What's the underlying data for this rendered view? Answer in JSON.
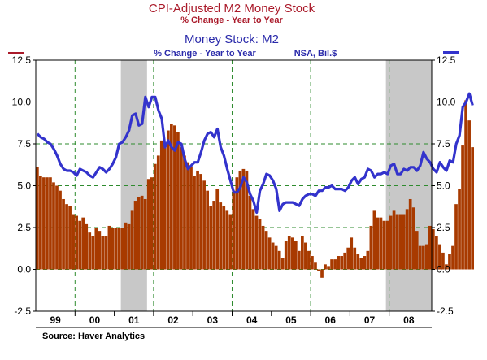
{
  "chart_data": {
    "type": "bar+line",
    "title": "CPI-Adjusted M2 Money Stock",
    "subtitle": "% Change - Year to Year",
    "title2": "Money Stock: M2",
    "subtitle2": "% Change - Year to Year",
    "note2": "NSA, Bil.$",
    "source": "Source: Haver Analytics",
    "ylim": [
      -2.5,
      12.5
    ],
    "yticks": [
      "12.5",
      "10.0",
      "7.5",
      "5.0",
      "2.5",
      "0.0",
      "-2.5"
    ],
    "xticks": [
      "99",
      "00",
      "01",
      "02",
      "03",
      "04",
      "05",
      "06",
      "07",
      "08"
    ],
    "colors": {
      "bars": "#a83a00",
      "line": "#3333cc",
      "title_left": "#aa1a2a",
      "title_right": "#2a2aaa",
      "recession": "#c8c8c8"
    },
    "recessions": [
      [
        "2001-03",
        "2001-11"
      ],
      [
        "2007-12",
        "2009-06"
      ]
    ],
    "series": [
      {
        "name": "CPI-Adjusted M2 Money Stock",
        "type": "bar",
        "axis": "left",
        "start": "1999-01",
        "values": [
          6.1,
          5.6,
          5.5,
          5.5,
          5.5,
          5.2,
          5.0,
          4.7,
          4.2,
          3.9,
          3.8,
          3.3,
          3.2,
          2.9,
          3.1,
          2.7,
          2.2,
          2.0,
          2.5,
          2.3,
          2.0,
          2.0,
          2.6,
          2.5,
          2.5,
          2.5,
          2.5,
          2.8,
          2.7,
          3.5,
          4.1,
          4.3,
          4.4,
          4.2,
          5.4,
          5.5,
          6.3,
          6.8,
          7.7,
          7.5,
          8.3,
          8.7,
          8.6,
          8.2,
          7.3,
          6.8,
          6.4,
          6.1,
          5.6,
          5.9,
          5.7,
          5.3,
          4.7,
          3.8,
          4.1,
          4.8,
          4.0,
          3.8,
          3.5,
          3.3,
          4.7,
          5.5,
          5.9,
          6.0,
          5.9,
          4.4,
          3.6,
          3.2,
          3.0,
          2.6,
          2.3,
          1.9,
          1.6,
          1.4,
          1.1,
          0.7,
          1.7,
          2.0,
          1.9,
          1.7,
          1.1,
          2.0,
          1.6,
          1.1,
          0.8,
          0.4,
          -0.1,
          -0.5,
          0.3,
          0.2,
          0.6,
          0.6,
          0.8,
          0.8,
          1.0,
          1.3,
          1.9,
          1.3,
          0.9,
          0.7,
          0.8,
          1.1,
          2.6,
          3.5,
          3.1,
          3.1,
          2.9,
          2.9,
          3.2,
          3.5,
          3.3,
          3.3,
          3.3,
          3.6,
          4.2,
          3.7,
          2.3,
          1.4,
          1.4,
          1.5,
          2.6,
          2.4,
          2.0,
          1.5,
          1.0,
          0.3,
          0.9,
          1.4,
          3.9,
          4.8,
          7.4,
          10.1,
          8.9,
          7.3
        ]
      },
      {
        "name": "Money Stock: M2",
        "type": "line",
        "axis": "right",
        "start": "1999-01",
        "values": [
          8.1,
          7.9,
          7.8,
          7.6,
          7.5,
          7.2,
          6.8,
          6.3,
          6.0,
          5.9,
          5.9,
          5.8,
          5.6,
          6.0,
          5.9,
          5.8,
          5.6,
          5.5,
          5.8,
          6.1,
          6.0,
          5.8,
          6.0,
          6.3,
          6.7,
          7.5,
          7.6,
          7.9,
          8.3,
          9.2,
          9.3,
          8.6,
          8.7,
          10.3,
          9.7,
          10.3,
          10.3,
          9.5,
          9.0,
          7.3,
          7.7,
          7.3,
          7.1,
          7.6,
          7.5,
          6.6,
          6.0,
          6.2,
          6.4,
          6.4,
          7.0,
          7.7,
          8.1,
          8.2,
          7.9,
          8.4,
          7.3,
          6.8,
          6.0,
          5.3,
          4.6,
          4.6,
          4.9,
          5.5,
          5.2,
          4.5,
          4.1,
          3.4,
          4.7,
          5.1,
          5.7,
          5.6,
          5.3,
          4.8,
          3.5,
          3.9,
          4.0,
          4.0,
          4.0,
          3.9,
          3.8,
          4.2,
          4.4,
          4.5,
          4.5,
          4.4,
          4.7,
          4.7,
          4.9,
          4.9,
          5.0,
          4.8,
          4.8,
          4.8,
          4.7,
          4.9,
          5.3,
          5.5,
          5.1,
          5.4,
          5.5,
          6.0,
          5.9,
          5.5,
          5.7,
          5.7,
          5.8,
          5.7,
          6.2,
          6.3,
          5.7,
          5.7,
          6.0,
          5.9,
          6.1,
          6.1,
          5.9,
          6.2,
          7.0,
          6.6,
          6.4,
          6.0,
          5.8,
          6.4,
          6.1,
          5.9,
          6.5,
          6.4,
          7.5,
          8.0,
          9.7,
          10.0,
          10.5,
          9.8
        ]
      }
    ]
  }
}
